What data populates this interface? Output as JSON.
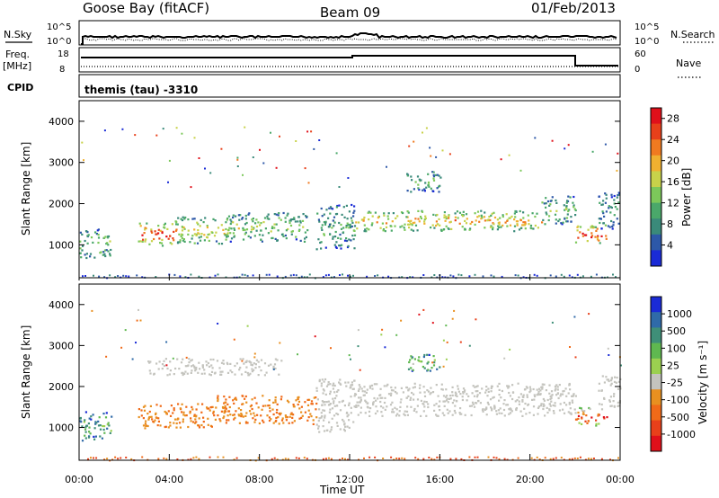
{
  "header": {
    "station": "Goose Bay (fitACF)",
    "beam": "Beam 09",
    "date": "01/Feb/2013"
  },
  "strips": {
    "nsky_label": "N.Sky",
    "nsearch_label": "N.Search",
    "freq_label_line1": "Freq.",
    "freq_label_line2": "[MHz]",
    "nave_label": "Nave",
    "cpid_label": "CPID",
    "cpid_text": "themis (tau) -3310",
    "noise_left_ticks": [
      "10^5",
      "10^0"
    ],
    "noise_right_ticks": [
      "10^5",
      "10^0"
    ],
    "freq_ticks": [
      "18",
      "8"
    ],
    "nave_ticks": [
      "60",
      "0"
    ]
  },
  "colors": {
    "power": [
      "#1a2bd6",
      "#2d58a8",
      "#3a8a7a",
      "#4aa86a",
      "#7cc85a",
      "#c8d24a",
      "#f0b030",
      "#f07a20",
      "#e8401a",
      "#e0101a"
    ],
    "velocity": [
      "#1a2bd6",
      "#2f6aa8",
      "#3f8f78",
      "#5fb850",
      "#9bd050",
      "#c4c4be",
      "#e89020",
      "#f06a18",
      "#e8401a",
      "#e0101a"
    ]
  },
  "chart_data": [
    {
      "type": "heatmap",
      "name": "power-panel",
      "ylabel": "Slant Range [km]",
      "xlabel": "Time UT",
      "x_ticks": [
        "00:00",
        "04:00",
        "08:00",
        "12:00",
        "16:00",
        "20:00",
        "00:00"
      ],
      "y_ticks": [
        1000,
        2000,
        3000,
        4000
      ],
      "ylim": [
        200,
        4500
      ],
      "xlim_hours": [
        0,
        24
      ],
      "colorbar": {
        "label": "Power [dB]",
        "ticks": [
          "4",
          "8",
          "12",
          "16",
          "20",
          "24",
          "28"
        ],
        "range": [
          0,
          30
        ]
      },
      "bands": [
        {
          "t0": 0.0,
          "t1": 1.4,
          "r0": 700,
          "r1": 1400,
          "level": 0.45
        },
        {
          "t0": 2.6,
          "t1": 4.2,
          "r0": 1000,
          "r1": 1550,
          "level": 0.95
        },
        {
          "t0": 4.2,
          "t1": 6.5,
          "r0": 1050,
          "r1": 1700,
          "level": 0.65
        },
        {
          "t0": 6.5,
          "t1": 10.2,
          "r0": 1100,
          "r1": 1800,
          "level": 0.5
        },
        {
          "t0": 10.5,
          "t1": 12.2,
          "r0": 900,
          "r1": 2000,
          "level": 0.35
        },
        {
          "t0": 12.2,
          "t1": 20.5,
          "r0": 1350,
          "r1": 1850,
          "level": 0.7
        },
        {
          "t0": 14.5,
          "t1": 16.0,
          "r0": 2300,
          "r1": 2800,
          "level": 0.4
        },
        {
          "t0": 20.5,
          "t1": 22.0,
          "r0": 1500,
          "r1": 2200,
          "level": 0.45
        },
        {
          "t0": 22.0,
          "t1": 23.4,
          "r0": 1050,
          "r1": 1500,
          "level": 0.95
        },
        {
          "t0": 23.0,
          "t1": 24.0,
          "r0": 1400,
          "r1": 2300,
          "level": 0.3
        }
      ]
    },
    {
      "type": "heatmap",
      "name": "velocity-panel",
      "ylabel": "Slant Range [km]",
      "xlabel": "Time UT",
      "x_ticks": [
        "00:00",
        "04:00",
        "08:00",
        "12:00",
        "16:00",
        "20:00",
        "00:00"
      ],
      "y_ticks": [
        1000,
        2000,
        3000,
        4000
      ],
      "ylim": [
        200,
        4500
      ],
      "xlim_hours": [
        0,
        24
      ],
      "colorbar": {
        "label": "Velocity [m s⁻¹]",
        "ticks": [
          "1000",
          "500",
          "100",
          "25",
          "-25",
          "-100",
          "-500",
          "-1000"
        ]
      },
      "bands": [
        {
          "t0": 0.0,
          "t1": 1.4,
          "r0": 700,
          "r1": 1400,
          "level": 0.35
        },
        {
          "t0": 2.6,
          "t1": 6.0,
          "r0": 1000,
          "r1": 1600,
          "level": 0.75
        },
        {
          "t0": 6.0,
          "t1": 10.5,
          "r0": 1100,
          "r1": 1800,
          "level": 0.8
        },
        {
          "t0": 10.5,
          "t1": 12.2,
          "r0": 900,
          "r1": 2200,
          "level": 0.55
        },
        {
          "t0": 12.2,
          "t1": 22.0,
          "r0": 1300,
          "r1": 2100,
          "level": 0.5
        },
        {
          "t0": 14.5,
          "t1": 16.0,
          "r0": 2400,
          "r1": 2800,
          "level": 0.4
        },
        {
          "t0": 3.0,
          "t1": 9.0,
          "r0": 2300,
          "r1": 2700,
          "level": 0.5
        },
        {
          "t0": 22.0,
          "t1": 23.4,
          "r0": 1050,
          "r1": 1500,
          "level": 0.95
        },
        {
          "t0": 23.0,
          "t1": 24.0,
          "r0": 1500,
          "r1": 2300,
          "level": 0.5
        }
      ]
    }
  ]
}
